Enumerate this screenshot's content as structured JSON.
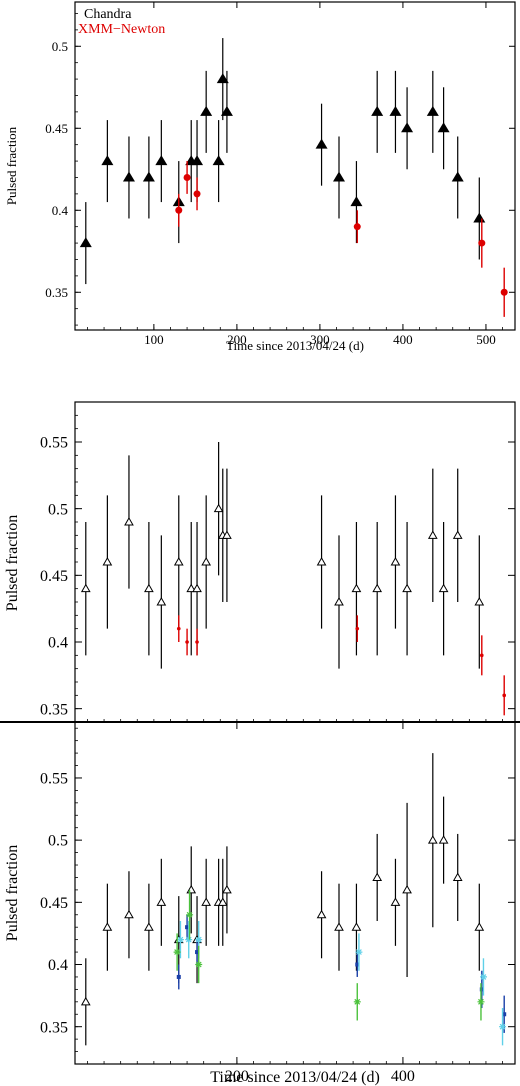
{
  "chart_data": [
    {
      "type": "scatter",
      "xlabel": "Time since 2013/04/24 (d)",
      "ylabel": "Pulsed fraction",
      "xlim": [
        5,
        535
      ],
      "ylim": [
        0.327,
        0.527
      ],
      "xticks": [
        100,
        200,
        300,
        400,
        500
      ],
      "yticks": [
        0.35,
        0.4,
        0.45,
        0.5
      ],
      "legend": {
        "placement": "top-left"
      },
      "series": [
        {
          "name": "Chandra",
          "marker": "filled-triangle",
          "color": "#000000",
          "points": [
            {
              "x": 18,
              "y": 0.38,
              "err": 0.025
            },
            {
              "x": 44,
              "y": 0.43,
              "err": 0.025
            },
            {
              "x": 70,
              "y": 0.42,
              "err": 0.025
            },
            {
              "x": 94,
              "y": 0.42,
              "err": 0.025
            },
            {
              "x": 109,
              "y": 0.43,
              "err": 0.025
            },
            {
              "x": 130,
              "y": 0.405,
              "err": 0.025
            },
            {
              "x": 145,
              "y": 0.43,
              "err": 0.025
            },
            {
              "x": 152,
              "y": 0.43,
              "err": 0.025
            },
            {
              "x": 163,
              "y": 0.46,
              "err": 0.025
            },
            {
              "x": 178,
              "y": 0.43,
              "err": 0.025
            },
            {
              "x": 183,
              "y": 0.48,
              "err": 0.025
            },
            {
              "x": 188,
              "y": 0.46,
              "err": 0.025
            },
            {
              "x": 302,
              "y": 0.44,
              "err": 0.025
            },
            {
              "x": 323,
              "y": 0.42,
              "err": 0.025
            },
            {
              "x": 344,
              "y": 0.405,
              "err": 0.025
            },
            {
              "x": 369,
              "y": 0.46,
              "err": 0.025
            },
            {
              "x": 391,
              "y": 0.46,
              "err": 0.025
            },
            {
              "x": 405,
              "y": 0.45,
              "err": 0.025
            },
            {
              "x": 436,
              "y": 0.46,
              "err": 0.025
            },
            {
              "x": 449,
              "y": 0.45,
              "err": 0.025
            },
            {
              "x": 466,
              "y": 0.42,
              "err": 0.025
            },
            {
              "x": 492,
              "y": 0.395,
              "err": 0.025
            }
          ]
        },
        {
          "name": "XMM−Newton",
          "marker": "filled-circle",
          "color": "#dd0000",
          "points": [
            {
              "x": 130,
              "y": 0.4,
              "err": 0.01
            },
            {
              "x": 140,
              "y": 0.42,
              "err": 0.01
            },
            {
              "x": 152,
              "y": 0.41,
              "err": 0.01
            },
            {
              "x": 345,
              "y": 0.39,
              "err": 0.01
            },
            {
              "x": 495,
              "y": 0.38,
              "err": 0.015
            },
            {
              "x": 522,
              "y": 0.35,
              "err": 0.015
            }
          ]
        }
      ]
    },
    {
      "type": "scatter",
      "xlabel": "",
      "ylabel": "Pulsed fraction",
      "xlim": [
        5,
        535
      ],
      "ylim": [
        0.34,
        0.58
      ],
      "yticks": [
        0.35,
        0.4,
        0.45,
        0.5,
        0.55
      ],
      "series": [
        {
          "marker": "open-triangle",
          "color": "#000000",
          "points": [
            {
              "x": 18,
              "y": 0.44,
              "err": 0.05
            },
            {
              "x": 44,
              "y": 0.46,
              "err": 0.05
            },
            {
              "x": 70,
              "y": 0.49,
              "err": 0.05
            },
            {
              "x": 94,
              "y": 0.44,
              "err": 0.05
            },
            {
              "x": 109,
              "y": 0.43,
              "err": 0.05
            },
            {
              "x": 130,
              "y": 0.46,
              "err": 0.05
            },
            {
              "x": 145,
              "y": 0.44,
              "err": 0.05
            },
            {
              "x": 152,
              "y": 0.44,
              "err": 0.05
            },
            {
              "x": 163,
              "y": 0.46,
              "err": 0.05
            },
            {
              "x": 178,
              "y": 0.5,
              "err": 0.05
            },
            {
              "x": 183,
              "y": 0.48,
              "err": 0.05
            },
            {
              "x": 188,
              "y": 0.48,
              "err": 0.05
            },
            {
              "x": 302,
              "y": 0.46,
              "err": 0.05
            },
            {
              "x": 323,
              "y": 0.43,
              "err": 0.05
            },
            {
              "x": 344,
              "y": 0.44,
              "err": 0.05
            },
            {
              "x": 369,
              "y": 0.44,
              "err": 0.05
            },
            {
              "x": 391,
              "y": 0.46,
              "err": 0.05
            },
            {
              "x": 405,
              "y": 0.44,
              "err": 0.05
            },
            {
              "x": 436,
              "y": 0.48,
              "err": 0.05
            },
            {
              "x": 449,
              "y": 0.44,
              "err": 0.05
            },
            {
              "x": 466,
              "y": 0.48,
              "err": 0.05
            },
            {
              "x": 492,
              "y": 0.43,
              "err": 0.05
            }
          ]
        },
        {
          "marker": "small-circle",
          "color": "#dd0000",
          "points": [
            {
              "x": 130,
              "y": 0.41,
              "err": 0.01
            },
            {
              "x": 140,
              "y": 0.4,
              "err": 0.01
            },
            {
              "x": 152,
              "y": 0.4,
              "err": 0.01
            },
            {
              "x": 345,
              "y": 0.41,
              "err": 0.01
            },
            {
              "x": 495,
              "y": 0.39,
              "err": 0.015
            },
            {
              "x": 522,
              "y": 0.36,
              "err": 0.015
            }
          ]
        }
      ]
    },
    {
      "type": "scatter",
      "xlabel": "Time since 2013/04/24 (d)",
      "ylabel": "Pulsed fraction",
      "xlim": [
        5,
        535
      ],
      "ylim": [
        0.32,
        0.595
      ],
      "xticks": [
        200,
        400
      ],
      "yticks": [
        0.35,
        0.4,
        0.45,
        0.5,
        0.55
      ],
      "series": [
        {
          "marker": "open-triangle",
          "color": "#000000",
          "points": [
            {
              "x": 18,
              "y": 0.37,
              "err": 0.035
            },
            {
              "x": 44,
              "y": 0.43,
              "err": 0.035
            },
            {
              "x": 70,
              "y": 0.44,
              "err": 0.035
            },
            {
              "x": 94,
              "y": 0.43,
              "err": 0.035
            },
            {
              "x": 109,
              "y": 0.45,
              "err": 0.035
            },
            {
              "x": 130,
              "y": 0.42,
              "err": 0.035
            },
            {
              "x": 145,
              "y": 0.46,
              "err": 0.035
            },
            {
              "x": 152,
              "y": 0.42,
              "err": 0.035
            },
            {
              "x": 163,
              "y": 0.45,
              "err": 0.035
            },
            {
              "x": 178,
              "y": 0.45,
              "err": 0.035
            },
            {
              "x": 183,
              "y": 0.45,
              "err": 0.035
            },
            {
              "x": 188,
              "y": 0.46,
              "err": 0.035
            },
            {
              "x": 302,
              "y": 0.44,
              "err": 0.035
            },
            {
              "x": 323,
              "y": 0.43,
              "err": 0.035
            },
            {
              "x": 344,
              "y": 0.43,
              "err": 0.035
            },
            {
              "x": 369,
              "y": 0.47,
              "err": 0.035
            },
            {
              "x": 391,
              "y": 0.45,
              "err": 0.035
            },
            {
              "x": 405,
              "y": 0.46,
              "err": 0.07
            },
            {
              "x": 436,
              "y": 0.5,
              "err": 0.07
            },
            {
              "x": 449,
              "y": 0.5,
              "err": 0.035
            },
            {
              "x": 466,
              "y": 0.47,
              "err": 0.035
            },
            {
              "x": 492,
              "y": 0.43,
              "err": 0.035
            }
          ]
        },
        {
          "marker": "small-square",
          "color": "#1a3fa8",
          "points": [
            {
              "x": 130,
              "y": 0.39,
              "err": 0.01
            },
            {
              "x": 140,
              "y": 0.43,
              "err": 0.01
            },
            {
              "x": 152,
              "y": 0.41,
              "err": 0.01
            },
            {
              "x": 345,
              "y": 0.4,
              "err": 0.01
            },
            {
              "x": 495,
              "y": 0.38,
              "err": 0.015
            },
            {
              "x": 522,
              "y": 0.36,
              "err": 0.015
            }
          ]
        },
        {
          "marker": "star",
          "color": "#5fd0e8",
          "points": [
            {
              "x": 132,
              "y": 0.42,
              "err": 0.015
            },
            {
              "x": 142,
              "y": 0.42,
              "err": 0.015
            },
            {
              "x": 154,
              "y": 0.42,
              "err": 0.015
            },
            {
              "x": 347,
              "y": 0.41,
              "err": 0.015
            },
            {
              "x": 497,
              "y": 0.39,
              "err": 0.015
            },
            {
              "x": 520,
              "y": 0.35,
              "err": 0.015
            }
          ]
        },
        {
          "marker": "star",
          "color": "#4cc23c",
          "points": [
            {
              "x": 128,
              "y": 0.41,
              "err": 0.015
            },
            {
              "x": 143,
              "y": 0.44,
              "err": 0.02
            },
            {
              "x": 154,
              "y": 0.4,
              "err": 0.015
            },
            {
              "x": 345,
              "y": 0.37,
              "err": 0.015
            },
            {
              "x": 494,
              "y": 0.37,
              "err": 0.015
            }
          ]
        }
      ]
    }
  ]
}
